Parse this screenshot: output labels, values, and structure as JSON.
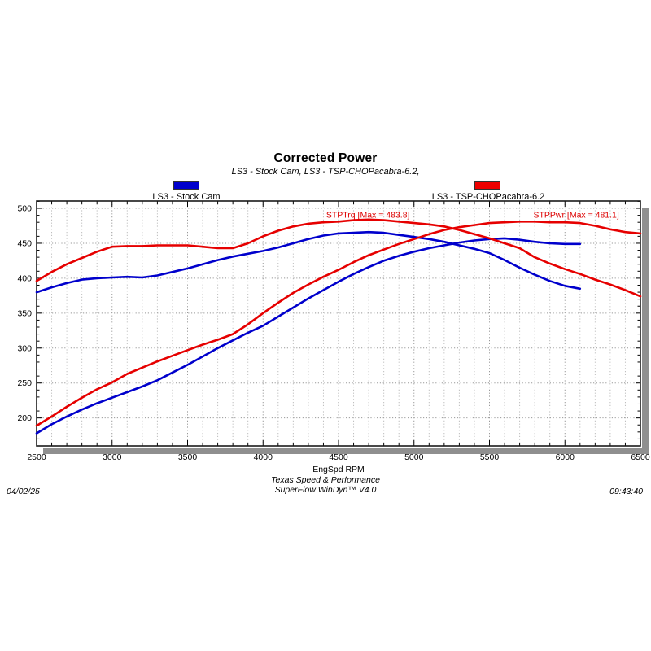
{
  "footer": {
    "date": "04/02/25",
    "org": "Texas Speed & Performance",
    "software": "SuperFlow WinDyn™ V4.0",
    "time": "09:43:40"
  },
  "chart_data": {
    "type": "line",
    "title": "Corrected Power",
    "subtitle": "LS3 - Stock Cam, LS3 - TSP-CHOPacabra-6.2,",
    "xlabel": "EngSpd RPM",
    "ylabel": "",
    "xlim": [
      2500,
      6500
    ],
    "ylim": [
      160,
      510.5
    ],
    "x_major_ticks": [
      2500,
      3000,
      3500,
      4000,
      4500,
      5000,
      5500,
      6000,
      6500
    ],
    "x_minor_step": 100,
    "y_major_ticks": [
      200,
      250,
      300,
      350,
      400,
      450,
      500
    ],
    "y_minor_step": 10,
    "grid": "dotted",
    "background": "#ffffff",
    "legend_position": "top",
    "legend": [
      {
        "label": "LS3 - Stock Cam",
        "color": "#0000cc"
      },
      {
        "label": "LS3 - TSP-CHOPacabra-6.2",
        "color": "#ee0000"
      }
    ],
    "annotations": [
      {
        "text": "STPTrq [Max = 483.8]",
        "x": 4695,
        "y": 490.5,
        "color": "#dd0000"
      },
      {
        "text": "STPPwr [Max = 481.1]",
        "x": 6075,
        "y": 490.5,
        "color": "#dd0000"
      }
    ],
    "series": [
      {
        "id": "stock-trq",
        "name": "LS3 - Stock Cam",
        "channel": "STPTrq",
        "color": "#0000cc",
        "points": [
          [
            2500,
            380
          ],
          [
            2600,
            387
          ],
          [
            2700,
            393
          ],
          [
            2800,
            398
          ],
          [
            2900,
            400
          ],
          [
            3000,
            401
          ],
          [
            3100,
            402
          ],
          [
            3200,
            401
          ],
          [
            3300,
            404
          ],
          [
            3400,
            409
          ],
          [
            3500,
            414
          ],
          [
            3600,
            420
          ],
          [
            3700,
            426
          ],
          [
            3800,
            431
          ],
          [
            3900,
            435
          ],
          [
            4000,
            439
          ],
          [
            4100,
            444
          ],
          [
            4200,
            450
          ],
          [
            4300,
            456
          ],
          [
            4400,
            461
          ],
          [
            4500,
            464
          ],
          [
            4600,
            465
          ],
          [
            4700,
            466
          ],
          [
            4800,
            465
          ],
          [
            4900,
            462
          ],
          [
            5000,
            459
          ],
          [
            5100,
            456
          ],
          [
            5200,
            452
          ],
          [
            5300,
            447
          ],
          [
            5400,
            442
          ],
          [
            5500,
            436
          ],
          [
            5600,
            426
          ],
          [
            5700,
            415
          ],
          [
            5800,
            405
          ],
          [
            5900,
            396
          ],
          [
            6000,
            389
          ],
          [
            6100,
            385
          ]
        ]
      },
      {
        "id": "stock-pwr",
        "name": "LS3 - Stock Cam",
        "channel": "STPPwr",
        "color": "#0000cc",
        "points": [
          [
            2500,
            178
          ],
          [
            2600,
            191
          ],
          [
            2700,
            202
          ],
          [
            2800,
            212
          ],
          [
            2900,
            221
          ],
          [
            3000,
            229
          ],
          [
            3100,
            237
          ],
          [
            3200,
            245
          ],
          [
            3300,
            254
          ],
          [
            3400,
            265
          ],
          [
            3500,
            276
          ],
          [
            3600,
            288
          ],
          [
            3700,
            300
          ],
          [
            3800,
            311
          ],
          [
            3900,
            322
          ],
          [
            4000,
            332
          ],
          [
            4100,
            345
          ],
          [
            4200,
            358
          ],
          [
            4300,
            371
          ],
          [
            4400,
            383
          ],
          [
            4500,
            395
          ],
          [
            4600,
            406
          ],
          [
            4700,
            416
          ],
          [
            4800,
            425
          ],
          [
            4900,
            432
          ],
          [
            5000,
            438
          ],
          [
            5100,
            443
          ],
          [
            5200,
            447
          ],
          [
            5300,
            451
          ],
          [
            5400,
            454
          ],
          [
            5500,
            456
          ],
          [
            5600,
            457
          ],
          [
            5700,
            455
          ],
          [
            5800,
            452
          ],
          [
            5900,
            450
          ],
          [
            6000,
            449
          ],
          [
            6100,
            449
          ]
        ]
      },
      {
        "id": "tsp-trq",
        "name": "LS3 - TSP-CHOPacabra-6.2",
        "channel": "STPTrq",
        "color": "#e60000",
        "max": 483.8,
        "points": [
          [
            2500,
            396
          ],
          [
            2600,
            409
          ],
          [
            2700,
            420
          ],
          [
            2800,
            429
          ],
          [
            2900,
            438
          ],
          [
            3000,
            445
          ],
          [
            3100,
            446
          ],
          [
            3200,
            446
          ],
          [
            3300,
            447
          ],
          [
            3400,
            447
          ],
          [
            3500,
            447
          ],
          [
            3600,
            445
          ],
          [
            3700,
            443
          ],
          [
            3800,
            443
          ],
          [
            3900,
            450
          ],
          [
            4000,
            460
          ],
          [
            4100,
            468
          ],
          [
            4200,
            474
          ],
          [
            4300,
            478
          ],
          [
            4400,
            480
          ],
          [
            4500,
            481
          ],
          [
            4600,
            483
          ],
          [
            4700,
            484
          ],
          [
            4800,
            483
          ],
          [
            4900,
            481
          ],
          [
            5000,
            479
          ],
          [
            5100,
            477
          ],
          [
            5200,
            474
          ],
          [
            5300,
            469
          ],
          [
            5400,
            463
          ],
          [
            5500,
            457
          ],
          [
            5600,
            450
          ],
          [
            5700,
            443
          ],
          [
            5800,
            430
          ],
          [
            5900,
            421
          ],
          [
            6000,
            413
          ],
          [
            6100,
            406
          ],
          [
            6200,
            398
          ],
          [
            6300,
            391
          ],
          [
            6400,
            383
          ],
          [
            6500,
            374
          ]
        ]
      },
      {
        "id": "tsp-pwr",
        "name": "LS3 - TSP-CHOPacabra-6.2",
        "channel": "STPPwr",
        "color": "#e60000",
        "max": 481.1,
        "points": [
          [
            2500,
            189
          ],
          [
            2600,
            202
          ],
          [
            2700,
            216
          ],
          [
            2800,
            229
          ],
          [
            2900,
            241
          ],
          [
            3000,
            251
          ],
          [
            3100,
            263
          ],
          [
            3200,
            272
          ],
          [
            3300,
            281
          ],
          [
            3400,
            289
          ],
          [
            3500,
            297
          ],
          [
            3600,
            305
          ],
          [
            3700,
            312
          ],
          [
            3800,
            320
          ],
          [
            3900,
            334
          ],
          [
            4000,
            350
          ],
          [
            4100,
            365
          ],
          [
            4200,
            379
          ],
          [
            4300,
            391
          ],
          [
            4400,
            402
          ],
          [
            4500,
            412
          ],
          [
            4600,
            423
          ],
          [
            4700,
            433
          ],
          [
            4800,
            441
          ],
          [
            4900,
            449
          ],
          [
            5000,
            456
          ],
          [
            5100,
            463
          ],
          [
            5200,
            469
          ],
          [
            5300,
            473
          ],
          [
            5400,
            476
          ],
          [
            5500,
            479
          ],
          [
            5600,
            480
          ],
          [
            5700,
            481
          ],
          [
            5800,
            481
          ],
          [
            5900,
            480
          ],
          [
            6000,
            480
          ],
          [
            6100,
            479
          ],
          [
            6200,
            475
          ],
          [
            6300,
            470
          ],
          [
            6400,
            466
          ],
          [
            6500,
            464
          ]
        ]
      }
    ]
  }
}
